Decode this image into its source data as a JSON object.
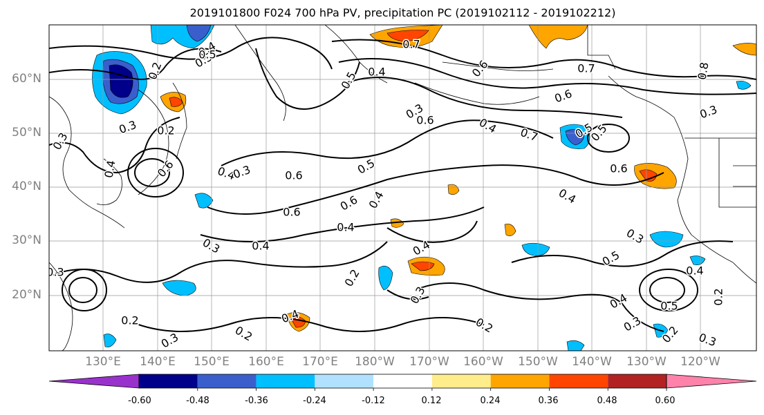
{
  "title": "2019101800 F024 700 hPa PV, precipitation PC (2019102112 - 2019102212)",
  "latitudes": [
    "60°N",
    "50°N",
    "40°N",
    "30°N",
    "20°N"
  ],
  "longitudes": [
    "130°E",
    "140°E",
    "150°E",
    "160°E",
    "170°E",
    "180°W",
    "170°W",
    "160°W",
    "150°W",
    "140°W",
    "130°W",
    "120°W"
  ],
  "colorbar": {
    "levels": [
      "-0.60",
      "-0.48",
      "-0.36",
      "-0.24",
      "-0.12",
      "0.12",
      "0.24",
      "0.36",
      "0.48",
      "0.60"
    ],
    "colors": [
      "#9932cc",
      "#00008b",
      "#3a5fcd",
      "#00bfff",
      "#b0e2ff",
      "#ffffff",
      "#ffec8b",
      "#ffa500",
      "#ff4500",
      "#b22222",
      "#ff82ab"
    ]
  },
  "contour_labels": [
    "0.4",
    "0.5",
    "0.6",
    "0.7",
    "0.3",
    "0.2",
    "0.4",
    "0.6",
    "0.5",
    "0.4",
    "0.3",
    "0.6",
    "0.4",
    "0.5",
    "0.6",
    "0.4",
    "0.4",
    "0.3",
    "0.4",
    "0.2",
    "0.3",
    "0.2",
    "0.3",
    "0.2",
    "0.4",
    "0.5",
    "0.3",
    "0.4",
    "0.5",
    "0.3",
    "0.2",
    "0.3",
    "0.2",
    "0.5",
    "0.4",
    "0.6",
    "0.7",
    "0.3",
    "0.8",
    "0.4",
    "0.6",
    "0.3",
    "0.5",
    "0.4",
    "0.3",
    "0.6",
    "0.2",
    "0.4",
    "0.3",
    "0.7",
    "0.6",
    "0.5",
    "0.2"
  ]
}
